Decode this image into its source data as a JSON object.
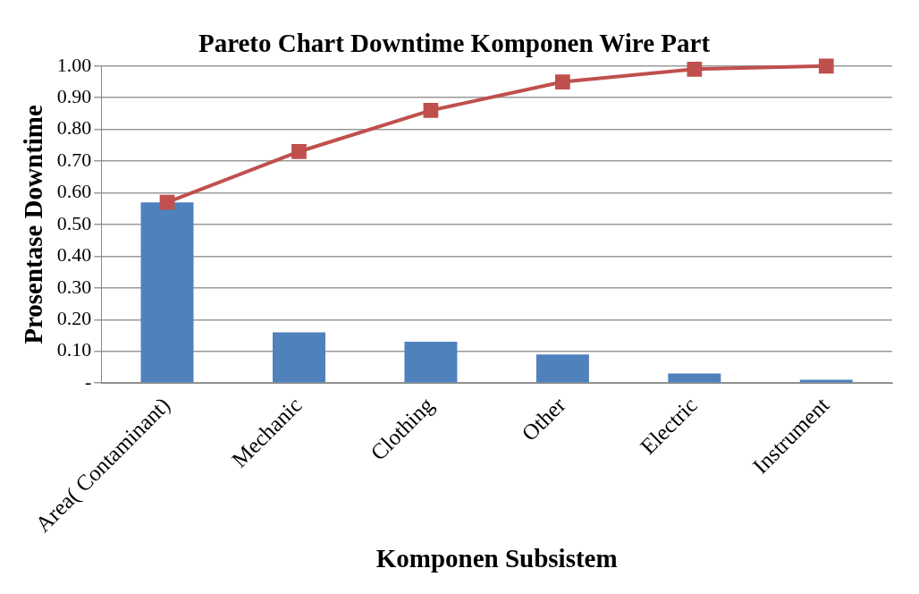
{
  "chart_data": {
    "type": "bar",
    "title": "Pareto Chart Downtime Komponen Wire Part",
    "xlabel": "Komponen Subsistem",
    "ylabel": "Prosentase Downtime",
    "categories": [
      "Area( Contaminant)",
      "Mechanic",
      "Clothing",
      "Other",
      "Electric",
      "Instrument"
    ],
    "series": [
      {
        "type": "line",
        "color": "#c0504d",
        "values": [
          0.57,
          0.73,
          0.86,
          0.95,
          0.99,
          1.0
        ],
        "marker": "square"
      },
      {
        "color": "#4f81bd",
        "values": [
          0.57,
          0.16,
          0.13,
          0.09,
          0.03,
          0.01
        ]
      }
    ],
    "ylim": [
      0,
      1
    ],
    "yticks": [
      {
        "value": 0,
        "label": "-"
      },
      {
        "value": 0.1,
        "label": "0.10"
      },
      {
        "value": 0.2,
        "label": "0.20"
      },
      {
        "value": 0.3,
        "label": "0.30"
      },
      {
        "value": 0.4,
        "label": "0.40"
      },
      {
        "value": 0.5,
        "label": "0.50"
      },
      {
        "value": 0.6,
        "label": "0.60"
      },
      {
        "value": 0.7,
        "label": "0.70"
      },
      {
        "value": 0.8,
        "label": "0.80"
      },
      {
        "value": 0.9,
        "label": "0.90"
      },
      {
        "value": 1,
        "label": "1.00"
      }
    ],
    "grid": "y",
    "legend": false
  }
}
